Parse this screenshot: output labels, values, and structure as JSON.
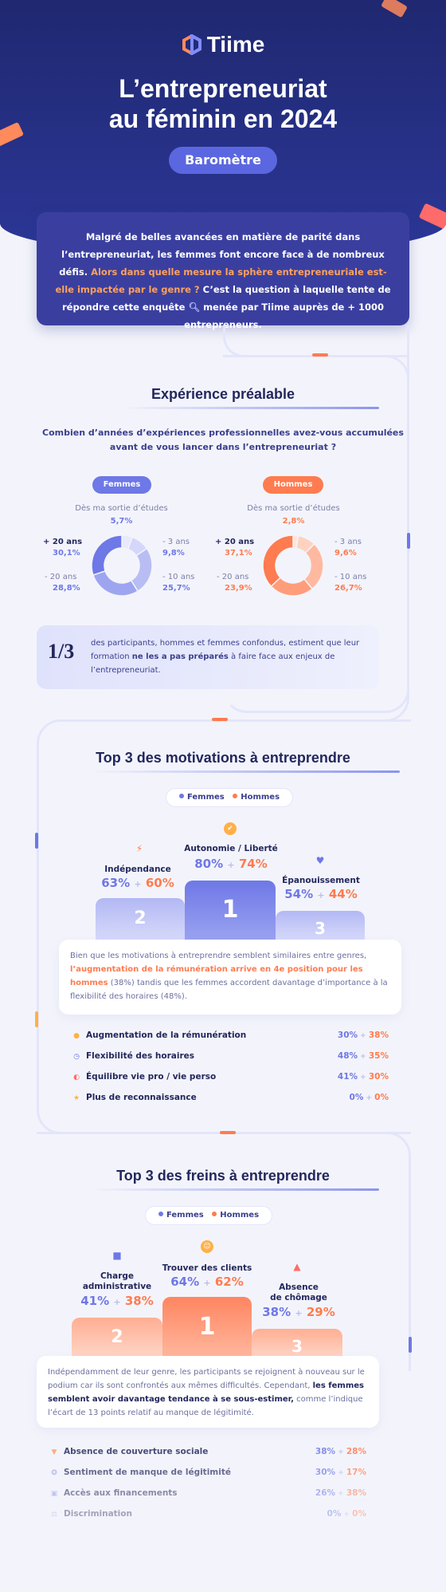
{
  "brand": "Tiime",
  "hero": {
    "title_line1": "L’entrepreneuriat",
    "title_line2": "au féminin en 2024",
    "badge": "Baromètre"
  },
  "intro": {
    "text1": "Malgré de belles avancées en matière de parité dans l’entrepreneuriat, les femmes font encore face à de nombreux défis.",
    "highlight": "Alors dans quelle mesure la sphère entrepreneuriale est-elle impactée par le genre ?",
    "text2": "C’est la question à laquelle tente de répondre cette enquête",
    "text3": "menée par Tiime auprès de + 1000 entrepreneurs."
  },
  "experience": {
    "title": "Expérience préalable",
    "question": "Combien d’années d’expériences professionnelles avez-vous accumulées avant de vous lancer dans l’entrepreneuriat ?",
    "women": {
      "tag": "Femmes",
      "top_label": "Dès ma sortie d’études",
      "top_value": "5,7%",
      "left_top_label": "+ 20 ans",
      "left_top_value": "30,1%",
      "left_bottom_label": "- 20 ans",
      "left_bottom_value": "28,8%",
      "right_top_label": "- 3 ans",
      "right_top_value": "9,8%",
      "right_bottom_label": "- 10 ans",
      "right_bottom_value": "25,7%"
    },
    "men": {
      "tag": "Hommes",
      "top_label": "Dès ma sortie d’études",
      "top_value": "2,8%",
      "left_top_label": "+ 20 ans",
      "left_top_value": "37,1%",
      "left_bottom_label": "- 20 ans",
      "left_bottom_value": "23,9%",
      "right_top_label": "- 3 ans",
      "right_top_value": "9,6%",
      "right_bottom_label": "- 10 ans",
      "right_bottom_value": "26,7%"
    },
    "stat_fraction": "1/3",
    "stat_text1": "des participants, hommes et femmes confondus, estiment que leur formation",
    "stat_bold": "ne les a pas préparés",
    "stat_text2": "à faire face aux enjeux de l’entrepreneuriat."
  },
  "motivations": {
    "title": "Top 3 des motivations à entreprendre",
    "legend_f": "Femmes",
    "legend_h": "Hommes",
    "first": {
      "label": "Autonomie / Liberté",
      "f": "80%",
      "h": "74%",
      "rank": "1",
      "icon": "check-badge-icon"
    },
    "second": {
      "label": "Indépendance",
      "f": "63%",
      "h": "60%",
      "rank": "2",
      "icon": "lightning-icon"
    },
    "third": {
      "label": "Épanouissement",
      "f": "54%",
      "h": "44%",
      "rank": "3",
      "icon": "heart-icon"
    },
    "plus": "+",
    "note_text1": "Bien que les motivations à entreprendre semblent similaires entre genres,",
    "note_highlight": "l’augmentation de la rémunération arrive en 4e position pour les hommes",
    "note_text2": "(38%) tandis que les femmes accordent davantage d’importance à la flexibilité des horaires (48%).",
    "rows": [
      {
        "label": "Augmentation de la rémunération",
        "f": "30%",
        "h": "38%",
        "icon": "coin-icon"
      },
      {
        "label": "Flexibilité des horaires",
        "f": "48%",
        "h": "35%",
        "icon": "clock-icon"
      },
      {
        "label": "Équilibre vie pro / vie perso",
        "f": "41%",
        "h": "30%",
        "icon": "balance-icon"
      },
      {
        "label": "Plus de reconnaissance",
        "f": "0%",
        "h": "0%",
        "icon": "star-icon"
      }
    ]
  },
  "brakes": {
    "title": "Top 3 des freins à entreprendre",
    "legend_f": "Femmes",
    "legend_h": "Hommes",
    "first": {
      "label": "Trouver des clients",
      "f": "64%",
      "h": "62%",
      "rank": "1",
      "icon": "user-icon"
    },
    "second": {
      "label_line1": "Charge",
      "label_line2": "administrative",
      "f": "41%",
      "h": "38%",
      "rank": "2",
      "icon": "folder-icon"
    },
    "third": {
      "label_line1": "Absence",
      "label_line2": "de chômage",
      "f": "38%",
      "h": "29%",
      "rank": "3",
      "icon": "warning-icon"
    },
    "note_text1": "Indépendamment de leur genre, les participants se rejoignent à nouveau sur le podium car ils sont confrontés aux mêmes difficultés. Cependant,",
    "note_bold": "les femmes semblent avoir davantage tendance à se sous-estimer,",
    "note_text2": "comme l’indique l’écart de 13 points relatif au manque de légitimité.",
    "rows": [
      {
        "label": "Absence de couverture sociale",
        "f": "38%",
        "h": "28%",
        "icon": "shield-icon"
      },
      {
        "label": "Sentiment de manque de légitimité",
        "f": "30%",
        "h": "17%",
        "icon": "badge-icon"
      },
      {
        "label": "Accès aux financements",
        "f": "26%",
        "h": "38%",
        "icon": "money-icon"
      },
      {
        "label": "Discrimination",
        "f": "0%",
        "h": "0%",
        "icon": "scale-icon"
      }
    ]
  },
  "colors": {
    "women": "#6e78e6",
    "men": "#ff7b50",
    "navy": "#23275c"
  }
}
